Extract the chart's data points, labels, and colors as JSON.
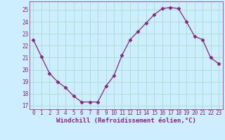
{
  "x": [
    0,
    1,
    2,
    3,
    4,
    5,
    6,
    7,
    8,
    9,
    10,
    11,
    12,
    13,
    14,
    15,
    16,
    17,
    18,
    19,
    20,
    21,
    22,
    23
  ],
  "y": [
    22.5,
    21.1,
    19.7,
    19.0,
    18.5,
    17.8,
    17.3,
    17.3,
    17.3,
    18.6,
    19.5,
    21.2,
    22.5,
    23.2,
    23.9,
    24.6,
    25.1,
    25.2,
    25.1,
    24.0,
    22.8,
    22.5,
    21.0,
    20.5
  ],
  "line_color": "#882288",
  "marker": "D",
  "markersize": 2.5,
  "linewidth": 0.9,
  "xlabel": "Windchill (Refroidissement éolien,°C)",
  "xlabel_fontsize": 6.5,
  "xtick_labels": [
    "0",
    "1",
    "2",
    "3",
    "4",
    "5",
    "6",
    "7",
    "8",
    "9",
    "10",
    "11",
    "12",
    "13",
    "14",
    "15",
    "16",
    "17",
    "18",
    "19",
    "20",
    "21",
    "22",
    "23"
  ],
  "ytick_values": [
    17,
    18,
    19,
    20,
    21,
    22,
    23,
    24,
    25
  ],
  "ylim": [
    16.7,
    25.7
  ],
  "xlim": [
    -0.5,
    23.5
  ],
  "background_color": "#cceeff",
  "grid_color": "#aaddcc",
  "tick_color": "#882288",
  "tick_fontsize": 5.5,
  "font_family": "monospace"
}
